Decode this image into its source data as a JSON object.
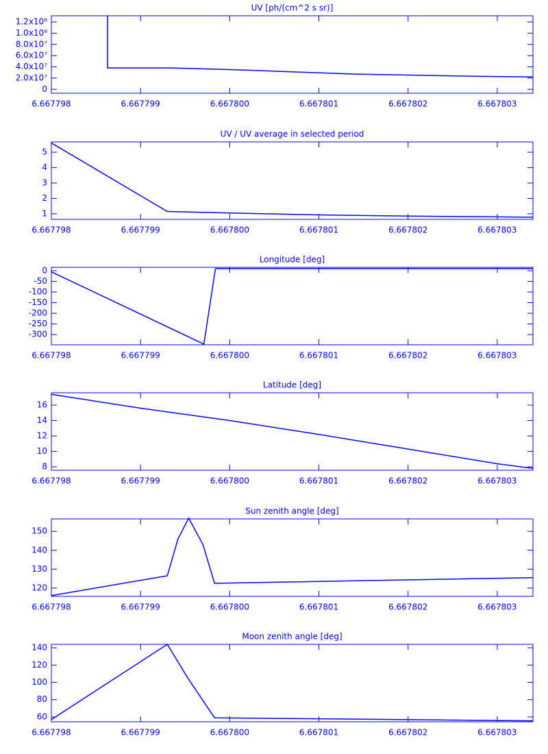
{
  "chart_data": [
    {
      "type": "line",
      "title": "UV [ph/(cm^2 s sr)]",
      "color": "#0000ff",
      "x": [
        6.66779863,
        6.66779863,
        6.66779934,
        6.66780003,
        6.66780072,
        6.66780142,
        6.66780211,
        6.6678028,
        6.6678034
      ],
      "values": [
        131000000,
        38000000,
        38000000,
        35000000,
        31000000,
        27000000,
        25000000,
        23000000,
        22000000
      ],
      "xlim": [
        6.667798,
        6.6678034
      ],
      "xticks": [
        6.667798,
        6.667799,
        {
          "value": 6.6678,
          "label": "6.667800"
        },
        6.667801,
        6.667802,
        6.667803
      ],
      "ylim": [
        -7000000,
        131000000
      ],
      "yticks": [
        0,
        {
          "value": 20000000,
          "label": "2.0x10⁷"
        },
        {
          "value": 40000000,
          "label": "4.0x10⁷"
        },
        {
          "value": 60000000,
          "label": "6.0x10⁷"
        },
        {
          "value": 80000000,
          "label": "8.0x10⁷"
        },
        {
          "value": 100000000,
          "label": "1.0x10⁸"
        },
        {
          "value": 120000000,
          "label": "1.2x10⁸"
        }
      ]
    },
    {
      "type": "line",
      "title": "UV / UV average in selected period",
      "color": "#0000ff",
      "x": [
        6.667798,
        6.6677993,
        6.6678,
        6.667801,
        6.667802,
        6.667803,
        6.6678034
      ],
      "values": [
        5.6,
        1.15,
        1.05,
        0.93,
        0.85,
        0.8,
        0.78
      ],
      "xlim": [
        6.667798,
        6.6678034
      ],
      "xticks": [
        6.667798,
        6.667799,
        {
          "value": 6.6678,
          "label": "6.667800"
        },
        6.667801,
        6.667802,
        6.667803
      ],
      "ylim": [
        0.64,
        5.67
      ],
      "yticks": [
        1,
        2,
        3,
        4,
        5
      ]
    },
    {
      "type": "line",
      "title": "Longitude [deg]",
      "color": "#0000ff",
      "x": [
        6.667798,
        6.66779971,
        6.66779984,
        6.6678034
      ],
      "values": [
        -5,
        -345,
        10,
        10
      ],
      "xlim": [
        6.667798,
        6.6678034
      ],
      "xticks": [
        6.667798,
        6.667799,
        {
          "value": 6.6678,
          "label": "6.667800"
        },
        6.667801,
        6.667802,
        6.667803
      ],
      "ylim": [
        -348,
        16
      ],
      "yticks": [
        0,
        -50,
        -100,
        -150,
        -200,
        -250,
        -300
      ]
    },
    {
      "type": "line",
      "title": "Latitude [deg]",
      "color": "#0000ff",
      "x": [
        6.667798,
        6.667799,
        6.6678,
        6.667801,
        6.667802,
        6.667803,
        6.6678034
      ],
      "values": [
        17.4,
        15.6,
        14.0,
        12.2,
        10.3,
        8.4,
        7.8
      ],
      "xlim": [
        6.667798,
        6.6678034
      ],
      "xticks": [
        6.667798,
        6.667799,
        {
          "value": 6.6678,
          "label": "6.667800"
        },
        6.667801,
        6.667802,
        6.667803
      ],
      "ylim": [
        7.56,
        17.6
      ],
      "yticks": [
        8,
        10,
        12,
        14,
        16
      ]
    },
    {
      "type": "line",
      "title": "Sun zenith angle [deg]",
      "color": "#0000ff",
      "x": [
        6.667798,
        6.6677993,
        6.66779942,
        6.66779954,
        6.6677997,
        6.66779983,
        6.6678034
      ],
      "values": [
        116,
        126.5,
        146,
        157,
        143,
        122.5,
        125.5
      ],
      "xlim": [
        6.667798,
        6.6678034
      ],
      "xticks": [
        6.667798,
        6.667799,
        {
          "value": 6.6678,
          "label": "6.667800"
        },
        6.667801,
        6.667802,
        6.667803
      ],
      "ylim": [
        115.6,
        156.6
      ],
      "yticks": [
        120,
        130,
        140,
        150
      ]
    },
    {
      "type": "line",
      "title": "Moon zenith angle [deg]",
      "color": "#0000ff",
      "x": [
        6.667798,
        6.6677993,
        6.66779953,
        6.66779983,
        6.6678034
      ],
      "values": [
        57,
        144,
        105,
        59,
        55.5
      ],
      "xlim": [
        6.667798,
        6.6678034
      ],
      "xticks": [
        6.667798,
        6.667799,
        {
          "value": 6.6678,
          "label": "6.667800"
        },
        6.667801,
        6.667802,
        6.667803
      ],
      "ylim": [
        54.4,
        144
      ],
      "yticks": [
        60,
        80,
        100,
        120,
        140
      ]
    }
  ]
}
